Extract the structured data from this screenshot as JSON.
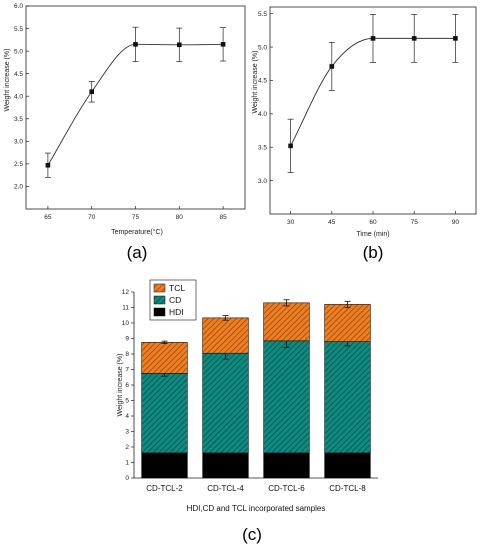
{
  "chart_data": [
    {
      "type": "line",
      "panel_label": "(a)",
      "xlabel": "Temperature(°C)",
      "ylabel": "Weight increase (%)",
      "x": [
        65,
        70,
        75,
        80,
        85
      ],
      "y": [
        2.47,
        4.1,
        5.15,
        5.14,
        5.15
      ],
      "errors": [
        0.27,
        0.23,
        0.38,
        0.37,
        0.37
      ],
      "xlim": [
        62.5,
        87.5
      ],
      "ylim": [
        1.5,
        6.0
      ],
      "xticks": [
        "65",
        "70",
        "75",
        "80",
        "85"
      ],
      "yticks": [
        "2.0",
        "2.5",
        "3.0",
        "3.5",
        "4.0",
        "4.5",
        "5.0",
        "5.5",
        "6.0"
      ],
      "grid": false,
      "marker": "square"
    },
    {
      "type": "line",
      "panel_label": "(b)",
      "xlabel": "Time (min)",
      "ylabel": "Weight increase (%)",
      "x": [
        30,
        45,
        60,
        75,
        90
      ],
      "y": [
        3.52,
        4.71,
        5.13,
        5.13,
        5.13
      ],
      "errors": [
        0.4,
        0.36,
        0.36,
        0.36,
        0.36
      ],
      "xlim": [
        22.5,
        97.5
      ],
      "ylim": [
        2.5,
        5.6
      ],
      "xticks": [
        "30",
        "45",
        "60",
        "75",
        "90"
      ],
      "yticks": [
        "3.0",
        "3.5",
        "4.0",
        "4.5",
        "5.0",
        "5.5"
      ],
      "grid": false,
      "marker": "square"
    },
    {
      "type": "bar",
      "stacked": true,
      "panel_label": "(c)",
      "xlabel": "HDI,CD and TCL incorporated samples",
      "ylabel": "Weight increase (%)",
      "categories": [
        "CD-TCL-2",
        "CD-TCL-4",
        "CD-TCL-6",
        "CD-TCL-8"
      ],
      "series": [
        {
          "name": "HDI",
          "values": [
            1.62,
            1.62,
            1.62,
            1.62
          ],
          "color": "#000000"
        },
        {
          "name": "CD",
          "values": [
            5.13,
            6.43,
            7.23,
            7.18
          ],
          "color": "#0f8a80",
          "errors": [
            0.18,
            0.38,
            0.42,
            0.28
          ]
        },
        {
          "name": "TCL",
          "values": [
            2.0,
            2.28,
            2.45,
            2.4
          ],
          "color": "#ee7e22",
          "errors": [
            0.08,
            0.15,
            0.2,
            0.2
          ]
        }
      ],
      "legend_order": [
        "TCL",
        "CD",
        "HDI"
      ],
      "legend_position": "top-left",
      "ylim": [
        0,
        12
      ],
      "yticks": [
        "0",
        "1",
        "2",
        "3",
        "4",
        "5",
        "6",
        "7",
        "8",
        "9",
        "10",
        "11",
        "12"
      ],
      "grid": false
    }
  ]
}
